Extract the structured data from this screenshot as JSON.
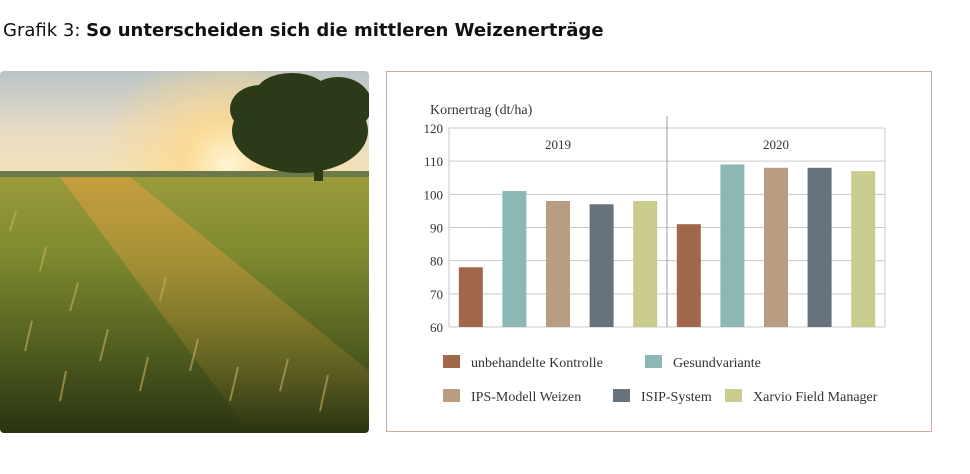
{
  "headline": {
    "prefix": "Grafik 3:",
    "title": "So unterscheiden sich die mittleren Weizenerträge"
  },
  "photo": {
    "icon": "wheat-field-sunset-photo"
  },
  "chart_data": {
    "type": "bar",
    "ylabel": "Kornertrag (dt/ha)",
    "xlabel": "",
    "ylim": [
      60,
      120
    ],
    "yticks": [
      60,
      70,
      80,
      90,
      100,
      110,
      120
    ],
    "grid": true,
    "legend_position": "bottom",
    "groups": [
      "2019",
      "2020"
    ],
    "series": [
      {
        "name": "unbehandelte Kontrolle",
        "color": "#a0674a",
        "values": [
          78,
          91
        ]
      },
      {
        "name": "Gesundvariante",
        "color": "#8bb8b5",
        "values": [
          101,
          109
        ]
      },
      {
        "name": "IPS-Modell Weizen",
        "color": "#b89d80",
        "values": [
          98,
          108
        ]
      },
      {
        "name": "ISIP-System",
        "color": "#66727c",
        "values": [
          97,
          108
        ]
      },
      {
        "name": "Xarvio Field Manager",
        "color": "#c9cc8c",
        "values": [
          98,
          107
        ]
      }
    ]
  }
}
